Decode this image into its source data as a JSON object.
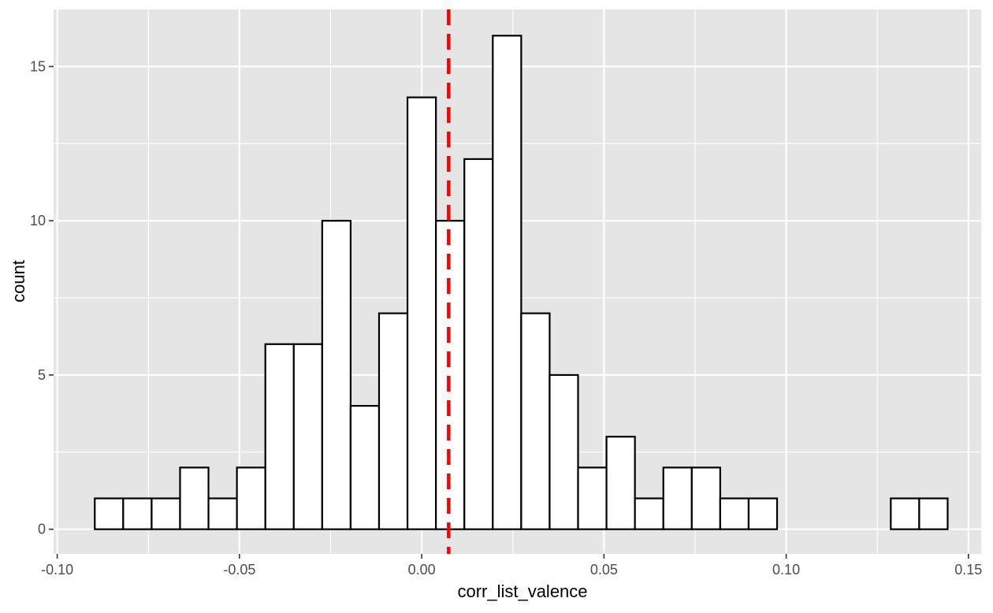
{
  "chart_data": {
    "type": "histogram",
    "xlabel": "corr_list_valence",
    "ylabel": "count",
    "xlim": [
      -0.101,
      0.1535
    ],
    "ylim": [
      -0.8,
      16.85
    ],
    "bin_width": 0.0078,
    "x_ticks": [
      -0.1,
      -0.05,
      0.0,
      0.05,
      0.1,
      0.15
    ],
    "x_tick_labels": [
      "-0.10",
      "-0.05",
      "0.00",
      "0.05",
      "0.10",
      "0.15"
    ],
    "y_ticks": [
      0,
      5,
      10,
      15
    ],
    "y_tick_labels": [
      "0",
      "5",
      "10",
      "15"
    ],
    "bins": [
      {
        "x_start": -0.0897,
        "x_end": -0.0819,
        "count": 1
      },
      {
        "x_start": -0.0819,
        "x_end": -0.0741,
        "count": 1
      },
      {
        "x_start": -0.0741,
        "x_end": -0.0663,
        "count": 1
      },
      {
        "x_start": -0.0663,
        "x_end": -0.0585,
        "count": 2
      },
      {
        "x_start": -0.0585,
        "x_end": -0.0507,
        "count": 1
      },
      {
        "x_start": -0.0507,
        "x_end": -0.0429,
        "count": 2
      },
      {
        "x_start": -0.0429,
        "x_end": -0.0351,
        "count": 6
      },
      {
        "x_start": -0.0351,
        "x_end": -0.0273,
        "count": 6
      },
      {
        "x_start": -0.0273,
        "x_end": -0.0195,
        "count": 10
      },
      {
        "x_start": -0.0195,
        "x_end": -0.0117,
        "count": 4
      },
      {
        "x_start": -0.0117,
        "x_end": -0.0039,
        "count": 7
      },
      {
        "x_start": -0.0039,
        "x_end": 0.0039,
        "count": 14
      },
      {
        "x_start": 0.0039,
        "x_end": 0.0117,
        "count": 10
      },
      {
        "x_start": 0.0117,
        "x_end": 0.0195,
        "count": 12
      },
      {
        "x_start": 0.0195,
        "x_end": 0.0273,
        "count": 16
      },
      {
        "x_start": 0.0273,
        "x_end": 0.0351,
        "count": 7
      },
      {
        "x_start": 0.0351,
        "x_end": 0.0429,
        "count": 5
      },
      {
        "x_start": 0.0429,
        "x_end": 0.0507,
        "count": 2
      },
      {
        "x_start": 0.0507,
        "x_end": 0.0585,
        "count": 3
      },
      {
        "x_start": 0.0585,
        "x_end": 0.0663,
        "count": 1
      },
      {
        "x_start": 0.0663,
        "x_end": 0.0741,
        "count": 2
      },
      {
        "x_start": 0.0741,
        "x_end": 0.0819,
        "count": 2
      },
      {
        "x_start": 0.0819,
        "x_end": 0.0897,
        "count": 1
      },
      {
        "x_start": 0.0897,
        "x_end": 0.0975,
        "count": 1
      },
      {
        "x_start": 0.0975,
        "x_end": 0.1053,
        "count": 0
      },
      {
        "x_start": 0.1053,
        "x_end": 0.1131,
        "count": 0
      },
      {
        "x_start": 0.1131,
        "x_end": 0.1209,
        "count": 0
      },
      {
        "x_start": 0.1209,
        "x_end": 0.1287,
        "count": 0
      },
      {
        "x_start": 0.1287,
        "x_end": 0.1365,
        "count": 1
      },
      {
        "x_start": 0.1365,
        "x_end": 0.1443,
        "count": 1
      }
    ],
    "reference_line": {
      "x": 0.0074,
      "color": "#ff0000",
      "style": "dashed"
    },
    "grid": true,
    "panel_background": "#e5e5e5",
    "gridline_color": "#ffffff",
    "bar_fill": "#ffffff",
    "bar_outline": "#000000"
  }
}
